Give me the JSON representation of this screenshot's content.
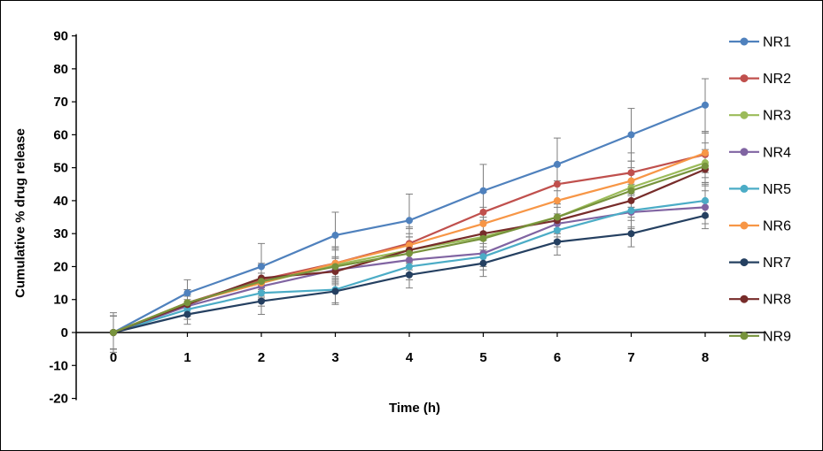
{
  "figure": {
    "background": "#FFFFFF",
    "border_color": "#000000"
  },
  "chart_data": {
    "type": "line",
    "title": "",
    "xlabel": "Time (h)",
    "ylabel": "Cumulative % drug release",
    "x": [
      0,
      1,
      2,
      3,
      4,
      5,
      6,
      7,
      8
    ],
    "ylim": [
      -20,
      90
    ],
    "ytick_step": 10,
    "grid": false,
    "legend_position": "right",
    "error_bar_color": "#7F7F7F",
    "series": [
      {
        "name": "NR1",
        "color": "#4F81BD",
        "values": [
          0,
          12,
          20,
          29.5,
          34,
          43,
          51,
          60,
          69
        ],
        "errors": [
          6,
          4,
          7,
          7,
          8,
          8,
          8,
          8,
          8
        ]
      },
      {
        "name": "NR2",
        "color": "#C0504D",
        "values": [
          0,
          9,
          16,
          21,
          27,
          36.5,
          45,
          48.5,
          54
        ],
        "errors": [
          5,
          4,
          5,
          5,
          5,
          6,
          6,
          6,
          7
        ]
      },
      {
        "name": "NR3",
        "color": "#9BBB59",
        "values": [
          0,
          9,
          15,
          20.5,
          25,
          29,
          35,
          44,
          51.5
        ],
        "errors": [
          5,
          4,
          5,
          5,
          5,
          5,
          5,
          6,
          6
        ]
      },
      {
        "name": "NR4",
        "color": "#8064A2",
        "values": [
          0,
          8,
          14,
          19,
          22,
          24,
          33,
          36.5,
          38
        ],
        "errors": [
          5,
          3,
          4,
          4,
          4,
          4,
          5,
          5,
          5
        ]
      },
      {
        "name": "NR5",
        "color": "#4BACC6",
        "values": [
          0,
          7,
          12,
          13,
          20,
          23,
          31,
          37,
          40
        ],
        "errors": [
          5,
          3,
          4,
          4,
          4,
          4,
          5,
          5,
          5
        ]
      },
      {
        "name": "NR6",
        "color": "#F79646",
        "values": [
          0,
          9,
          15,
          21,
          26.5,
          33,
          40,
          46,
          54.5
        ],
        "errors": [
          5,
          4,
          5,
          5,
          5,
          5,
          6,
          6,
          6
        ]
      },
      {
        "name": "NR7",
        "color": "#254061",
        "values": [
          0,
          5.5,
          9.5,
          12.5,
          17.5,
          21,
          27.5,
          30,
          35.5
        ],
        "errors": [
          5,
          3,
          4,
          4,
          4,
          4,
          4,
          4,
          4
        ]
      },
      {
        "name": "NR8",
        "color": "#772C2A",
        "values": [
          0,
          8.5,
          16.5,
          18.5,
          25,
          30,
          34,
          40,
          49.5
        ],
        "errors": [
          5,
          3,
          4,
          4,
          4,
          4,
          5,
          5,
          5
        ]
      },
      {
        "name": "NR9",
        "color": "#77933C",
        "values": [
          0,
          9,
          15.5,
          20,
          24,
          28.5,
          35,
          43,
          50.5
        ],
        "errors": [
          5,
          4,
          5,
          5,
          5,
          5,
          5,
          5,
          5
        ]
      }
    ]
  }
}
